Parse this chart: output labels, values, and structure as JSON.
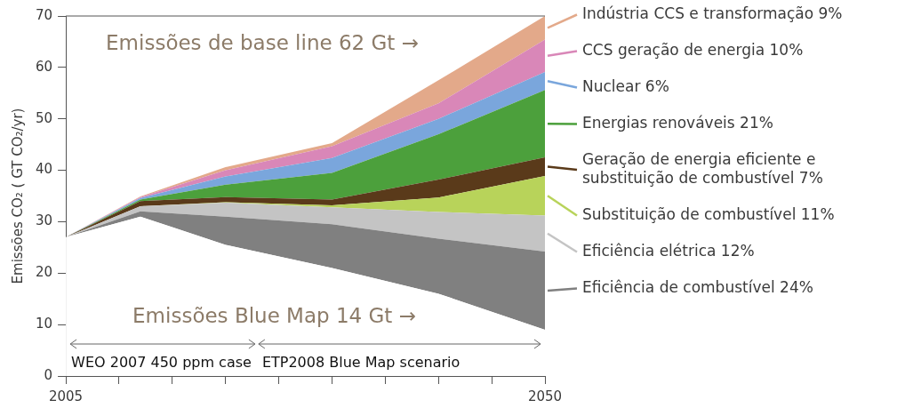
{
  "chart_data": {
    "type": "area",
    "ylabel": "Emissões CO₂ ( GT CO₂/yr)",
    "x": [
      2005,
      2012,
      2020,
      2030,
      2040,
      2050
    ],
    "xlim": [
      2005,
      2050
    ],
    "xticks": [
      2005,
      {
        "value": 2010,
        "label": null
      },
      {
        "value": 2015,
        "label": null
      },
      {
        "value": 2020,
        "label": null
      },
      {
        "value": 2025,
        "label": null
      },
      {
        "value": 2030,
        "label": null
      },
      {
        "value": 2035,
        "label": null
      },
      {
        "value": 2040,
        "label": null
      },
      {
        "value": 2045,
        "label": null
      },
      2050
    ],
    "ylim": [
      0,
      70
    ],
    "yticks": [
      0,
      10,
      20,
      30,
      40,
      50,
      60,
      70
    ],
    "stacked": true,
    "grid": false,
    "legend": "right",
    "series": [
      {
        "color": "#ffffff",
        "values": [
          27,
          31,
          25.5,
          21,
          16,
          9
        ]
      },
      {
        "name": "Eficiência de combustível 24%",
        "color": "#808080",
        "values": [
          0,
          1,
          5.5,
          8.5,
          10.7,
          15.2
        ]
      },
      {
        "name": "Eficiência elétrica 12%",
        "color": "#c4c4c4",
        "values": [
          0,
          1,
          2.7,
          3.3,
          5.2,
          7
        ]
      },
      {
        "name": "Substituição de combustível 11%",
        "color": "#b8d35a",
        "values": [
          0,
          0,
          0.1,
          0.4,
          2.8,
          7.7
        ]
      },
      {
        "name": "Geração de energia eficiente e substituição de combustível 7%",
        "color": "#5a3a1a",
        "values": [
          0,
          1,
          1,
          1.1,
          3.5,
          3.6
        ]
      },
      {
        "name": "Energias renováveis 21%",
        "color": "#4ca03c",
        "values": [
          0,
          0.3,
          2.4,
          5.2,
          8.8,
          13.1
        ]
      },
      {
        "name": "Nuclear 6%",
        "color": "#7aa6dc",
        "values": [
          0,
          0.3,
          1.6,
          2.9,
          3,
          3.5
        ]
      },
      {
        "name": "CCS geração de energia 10%",
        "color": "#d987b8",
        "values": [
          0,
          0.2,
          1.2,
          2.3,
          3,
          6.3
        ]
      },
      {
        "name": "Indústria CCS e transformação 9%",
        "color": "#e3a98a",
        "values": [
          0,
          0.1,
          0.6,
          0.6,
          4.5,
          4.6
        ]
      }
    ],
    "annotations": [
      "Emissões de base line 62 Gt →",
      "Emissões Blue Map 14 Gt →",
      "WEO 2007 450 ppm case",
      "ETP2008 Blue Map scenario"
    ]
  }
}
